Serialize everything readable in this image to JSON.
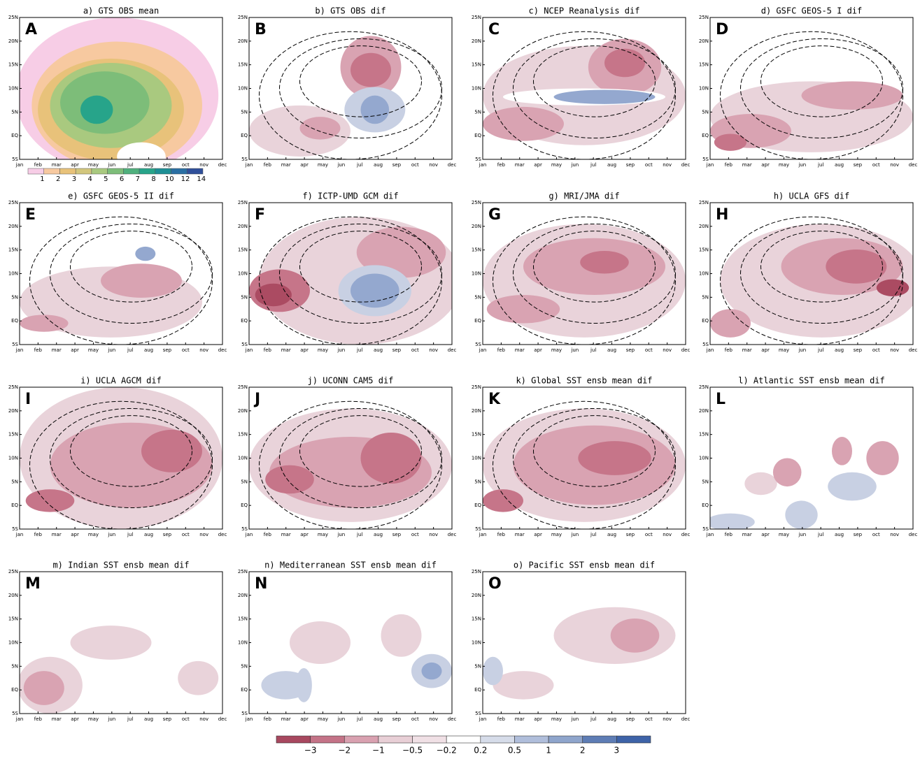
{
  "figure": {
    "panels": [
      {
        "title": "a) GTS OBS mean",
        "letter": "A"
      },
      {
        "title": "b) GTS OBS dif",
        "letter": "B"
      },
      {
        "title": "c) NCEP Reanalysis dif",
        "letter": "C"
      },
      {
        "title": "d) GSFC GEOS-5 I dif",
        "letter": "D"
      },
      {
        "title": "e) GSFC GEOS-5 II dif",
        "letter": "E"
      },
      {
        "title": "f) ICTP-UMD GCM dif",
        "letter": "F"
      },
      {
        "title": "g) MRI/JMA dif",
        "letter": "G"
      },
      {
        "title": "h) UCLA GFS dif",
        "letter": "H"
      },
      {
        "title": "i) UCLA AGCM dif",
        "letter": "I"
      },
      {
        "title": "j) UCONN CAM5 dif",
        "letter": "J"
      },
      {
        "title": "k) Global SST ensb mean dif",
        "letter": "K"
      },
      {
        "title": "l) Atlantic SST ensb mean dif",
        "letter": "L"
      },
      {
        "title": "m) Indian SST ensb mean dif",
        "letter": "M"
      },
      {
        "title": "n) Mediterranean SST ensb mean dif",
        "letter": "N"
      },
      {
        "title": "o) Pacific SST ensb mean dif",
        "letter": "O"
      }
    ],
    "y_labels": [
      "25N",
      "20N",
      "15N",
      "10N",
      "5N",
      "EQ",
      "5S"
    ],
    "x_labels": [
      "jan",
      "feb",
      "mar",
      "apr",
      "may",
      "jun",
      "jul",
      "aug",
      "sep",
      "oct",
      "nov",
      "dec"
    ],
    "mean_colorbar": [
      "1",
      "2",
      "3",
      "4",
      "5",
      "6",
      "7",
      "8",
      "10",
      "12",
      "14"
    ],
    "dif_colorbar": [
      "−3",
      "−2",
      "−1",
      "−0.5",
      "−0.2",
      "0.2",
      "0.5",
      "1",
      "2",
      "3"
    ]
  }
}
